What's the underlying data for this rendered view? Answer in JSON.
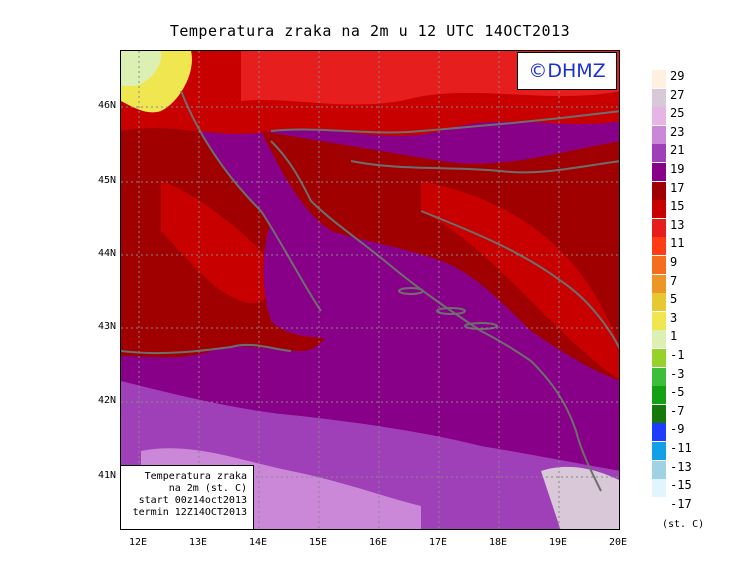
{
  "title": "Temperatura zraka na 2m u 12 UTC 14OCT2013",
  "logo": "©DHMZ",
  "info_box": {
    "line1": "Temperatura zraka",
    "line2": "na 2m (st. C)",
    "line3": "start 00z14oct2013",
    "line4": "termin 12Z14OCT2013"
  },
  "lat_labels": [
    "46N",
    "45N",
    "44N",
    "43N",
    "42N",
    "41N"
  ],
  "lon_labels": [
    "12E",
    "13E",
    "14E",
    "15E",
    "16E",
    "17E",
    "18E",
    "19E",
    "20E"
  ],
  "legend": {
    "labels": [
      "29",
      "27",
      "25",
      "23",
      "21",
      "19",
      "17",
      "15",
      "13",
      "11",
      "9",
      "7",
      "5",
      "3",
      "1",
      "-1",
      "-3",
      "-5",
      "-7",
      "-9",
      "-11",
      "-13",
      "-15",
      "-17"
    ],
    "colors": [
      "#fff0e0",
      "#d8c8d8",
      "#e6b4e6",
      "#cc88d8",
      "#a040b8",
      "#880088",
      "#a00000",
      "#c80000",
      "#e61e1e",
      "#ff3c14",
      "#f56e1e",
      "#ec9628",
      "#e6c832",
      "#f0e650",
      "#dcf0b4",
      "#96d22a",
      "#3cbe3c",
      "#14a014",
      "#14780a",
      "#1e3cff",
      "#14a0e6",
      "#a0d2e6",
      "#e1f5ff",
      "#ffffff"
    ],
    "units": "(st. C)"
  },
  "colors": {
    "sea_purple": "#880088",
    "coast_gray": "#6e6e6e",
    "logo_blue": "#1a2fd4"
  }
}
